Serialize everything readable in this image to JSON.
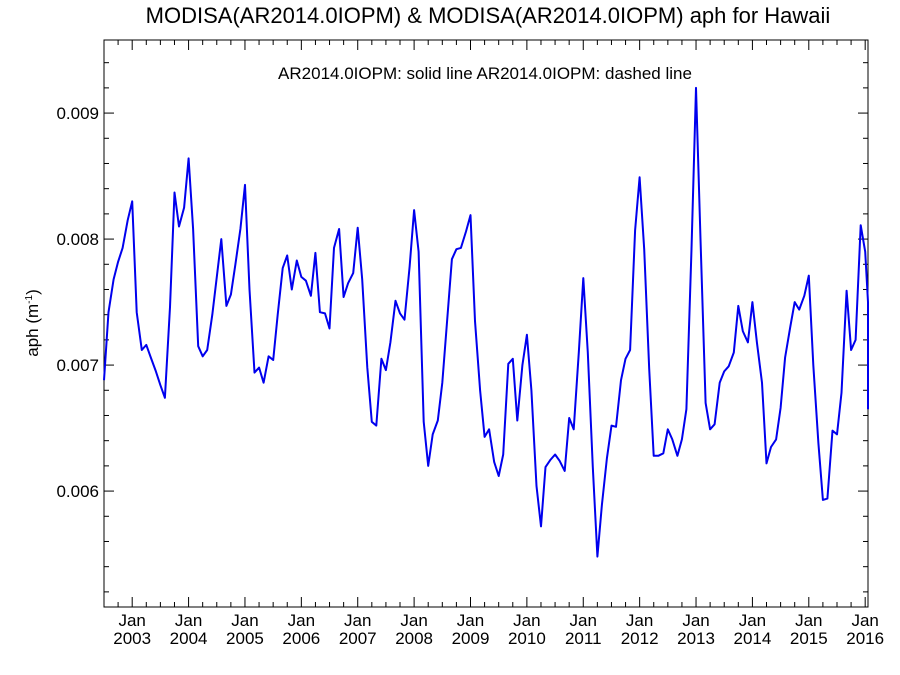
{
  "chart_data": {
    "type": "line",
    "title": "MODISA(AR2014.0IOPM) & MODISA(AR2014.0IOPM)  aph for Hawaii",
    "subtitle": "AR2014.0IOPM: solid line   AR2014.0IOPM: dashed line",
    "ylabel_main": "aph (m",
    "ylabel_sup": "-1",
    "ylabel_close": ")",
    "ylim": [
      0.00508,
      0.00958
    ],
    "xlim": [
      2002.5,
      2016.05
    ],
    "yticks": [
      {
        "value": 0.006,
        "label": "0.006"
      },
      {
        "value": 0.007,
        "label": "0.007"
      },
      {
        "value": 0.008,
        "label": "0.008"
      },
      {
        "value": 0.009,
        "label": "0.009"
      }
    ],
    "xticks": [
      {
        "value": 2003,
        "label": "Jan",
        "year": "2003"
      },
      {
        "value": 2004,
        "label": "Jan",
        "year": "2004"
      },
      {
        "value": 2005,
        "label": "Jan",
        "year": "2005"
      },
      {
        "value": 2006,
        "label": "Jan",
        "year": "2006"
      },
      {
        "value": 2007,
        "label": "Jan",
        "year": "2007"
      },
      {
        "value": 2008,
        "label": "Jan",
        "year": "2008"
      },
      {
        "value": 2009,
        "label": "Jan",
        "year": "2009"
      },
      {
        "value": 2010,
        "label": "Jan",
        "year": "2010"
      },
      {
        "value": 2011,
        "label": "Jan",
        "year": "2011"
      },
      {
        "value": 2012,
        "label": "Jan",
        "year": "2012"
      },
      {
        "value": 2013,
        "label": "Jan",
        "year": "2013"
      },
      {
        "value": 2014,
        "label": "Jan",
        "year": "2014"
      },
      {
        "value": 2015,
        "label": "Jan",
        "year": "2015"
      },
      {
        "value": 2016,
        "label": "Jan",
        "year": "2016"
      }
    ],
    "series": [
      {
        "style": "solid",
        "color": "#0000ee",
        "points": [
          [
            2002.5,
            0.00688
          ],
          [
            2002.58,
            0.00742
          ],
          [
            2002.67,
            0.00768
          ],
          [
            2002.75,
            0.00782
          ],
          [
            2002.83,
            0.00793
          ],
          [
            2002.92,
            0.00815
          ],
          [
            2003.0,
            0.0083
          ],
          [
            2003.08,
            0.00742
          ],
          [
            2003.17,
            0.00712
          ],
          [
            2003.25,
            0.00716
          ],
          [
            2003.33,
            0.00706
          ],
          [
            2003.42,
            0.00695
          ],
          [
            2003.5,
            0.00684
          ],
          [
            2003.58,
            0.00674
          ],
          [
            2003.67,
            0.00746
          ],
          [
            2003.75,
            0.00837
          ],
          [
            2003.83,
            0.0081
          ],
          [
            2003.92,
            0.00825
          ],
          [
            2004.0,
            0.00864
          ],
          [
            2004.08,
            0.00808
          ],
          [
            2004.17,
            0.00715
          ],
          [
            2004.25,
            0.00707
          ],
          [
            2004.33,
            0.00712
          ],
          [
            2004.42,
            0.0074
          ],
          [
            2004.5,
            0.0077
          ],
          [
            2004.58,
            0.008
          ],
          [
            2004.67,
            0.00747
          ],
          [
            2004.75,
            0.00756
          ],
          [
            2004.83,
            0.0078
          ],
          [
            2004.92,
            0.00808
          ],
          [
            2005.0,
            0.00843
          ],
          [
            2005.08,
            0.0076
          ],
          [
            2005.17,
            0.00694
          ],
          [
            2005.25,
            0.00698
          ],
          [
            2005.33,
            0.00686
          ],
          [
            2005.42,
            0.00707
          ],
          [
            2005.5,
            0.00704
          ],
          [
            2005.58,
            0.0074
          ],
          [
            2005.67,
            0.00777
          ],
          [
            2005.75,
            0.00787
          ],
          [
            2005.83,
            0.0076
          ],
          [
            2005.92,
            0.00783
          ],
          [
            2006.0,
            0.0077
          ],
          [
            2006.08,
            0.00767
          ],
          [
            2006.17,
            0.00755
          ],
          [
            2006.25,
            0.00789
          ],
          [
            2006.33,
            0.00742
          ],
          [
            2006.42,
            0.00741
          ],
          [
            2006.5,
            0.00729
          ],
          [
            2006.58,
            0.00793
          ],
          [
            2006.67,
            0.00808
          ],
          [
            2006.75,
            0.00754
          ],
          [
            2006.83,
            0.00765
          ],
          [
            2006.92,
            0.00773
          ],
          [
            2007.0,
            0.00809
          ],
          [
            2007.08,
            0.00768
          ],
          [
            2007.17,
            0.00698
          ],
          [
            2007.25,
            0.00655
          ],
          [
            2007.33,
            0.00652
          ],
          [
            2007.42,
            0.00705
          ],
          [
            2007.5,
            0.00696
          ],
          [
            2007.58,
            0.00718
          ],
          [
            2007.67,
            0.00751
          ],
          [
            2007.75,
            0.00741
          ],
          [
            2007.83,
            0.00736
          ],
          [
            2007.92,
            0.00778
          ],
          [
            2008.0,
            0.00823
          ],
          [
            2008.08,
            0.0079
          ],
          [
            2008.17,
            0.00655
          ],
          [
            2008.25,
            0.0062
          ],
          [
            2008.33,
            0.00645
          ],
          [
            2008.42,
            0.00656
          ],
          [
            2008.5,
            0.00686
          ],
          [
            2008.58,
            0.00732
          ],
          [
            2008.67,
            0.00784
          ],
          [
            2008.75,
            0.00792
          ],
          [
            2008.83,
            0.00793
          ],
          [
            2008.92,
            0.00806
          ],
          [
            2009.0,
            0.00819
          ],
          [
            2009.08,
            0.00735
          ],
          [
            2009.17,
            0.0068
          ],
          [
            2009.25,
            0.00643
          ],
          [
            2009.33,
            0.00649
          ],
          [
            2009.42,
            0.00623
          ],
          [
            2009.5,
            0.00612
          ],
          [
            2009.58,
            0.00629
          ],
          [
            2009.67,
            0.00701
          ],
          [
            2009.75,
            0.00705
          ],
          [
            2009.83,
            0.00656
          ],
          [
            2009.92,
            0.007
          ],
          [
            2010.0,
            0.00724
          ],
          [
            2010.08,
            0.0068
          ],
          [
            2010.17,
            0.00604
          ],
          [
            2010.25,
            0.00572
          ],
          [
            2010.33,
            0.00619
          ],
          [
            2010.42,
            0.00625
          ],
          [
            2010.5,
            0.00629
          ],
          [
            2010.58,
            0.00624
          ],
          [
            2010.67,
            0.00616
          ],
          [
            2010.75,
            0.00658
          ],
          [
            2010.83,
            0.00649
          ],
          [
            2010.92,
            0.0071
          ],
          [
            2011.0,
            0.00769
          ],
          [
            2011.08,
            0.0071
          ],
          [
            2011.17,
            0.00619
          ],
          [
            2011.25,
            0.00548
          ],
          [
            2011.33,
            0.00589
          ],
          [
            2011.42,
            0.00626
          ],
          [
            2011.5,
            0.00652
          ],
          [
            2011.58,
            0.00651
          ],
          [
            2011.67,
            0.00688
          ],
          [
            2011.75,
            0.00705
          ],
          [
            2011.83,
            0.00712
          ],
          [
            2011.92,
            0.00807
          ],
          [
            2012.0,
            0.00849
          ],
          [
            2012.08,
            0.00792
          ],
          [
            2012.17,
            0.00697
          ],
          [
            2012.25,
            0.00628
          ],
          [
            2012.33,
            0.00628
          ],
          [
            2012.42,
            0.0063
          ],
          [
            2012.5,
            0.00649
          ],
          [
            2012.58,
            0.00641
          ],
          [
            2012.67,
            0.00628
          ],
          [
            2012.75,
            0.00641
          ],
          [
            2012.83,
            0.00665
          ],
          [
            2012.92,
            0.00792
          ],
          [
            2013.0,
            0.0092
          ],
          [
            2013.08,
            0.008
          ],
          [
            2013.17,
            0.0067
          ],
          [
            2013.25,
            0.00649
          ],
          [
            2013.33,
            0.00653
          ],
          [
            2013.42,
            0.00686
          ],
          [
            2013.5,
            0.00695
          ],
          [
            2013.58,
            0.00699
          ],
          [
            2013.67,
            0.0071
          ],
          [
            2013.75,
            0.00747
          ],
          [
            2013.83,
            0.00727
          ],
          [
            2013.92,
            0.00718
          ],
          [
            2014.0,
            0.0075
          ],
          [
            2014.08,
            0.00718
          ],
          [
            2014.17,
            0.00686
          ],
          [
            2014.25,
            0.00622
          ],
          [
            2014.33,
            0.00635
          ],
          [
            2014.42,
            0.00641
          ],
          [
            2014.5,
            0.00666
          ],
          [
            2014.58,
            0.00706
          ],
          [
            2014.67,
            0.0073
          ],
          [
            2014.75,
            0.0075
          ],
          [
            2014.83,
            0.00744
          ],
          [
            2014.92,
            0.00755
          ],
          [
            2015.0,
            0.00771
          ],
          [
            2015.08,
            0.007
          ],
          [
            2015.17,
            0.00638
          ],
          [
            2015.25,
            0.00593
          ],
          [
            2015.33,
            0.00594
          ],
          [
            2015.42,
            0.00648
          ],
          [
            2015.5,
            0.00645
          ],
          [
            2015.58,
            0.00678
          ],
          [
            2015.67,
            0.00759
          ],
          [
            2015.75,
            0.00712
          ],
          [
            2015.83,
            0.0072
          ],
          [
            2015.92,
            0.00811
          ],
          [
            2016.0,
            0.0079
          ],
          [
            2016.05,
            0.0075
          ],
          [
            2016.1,
            0.00665
          ]
        ]
      }
    ],
    "grid": false,
    "colors": {
      "line": "#0000ee",
      "axis": "#000000",
      "background": "#ffffff"
    }
  }
}
